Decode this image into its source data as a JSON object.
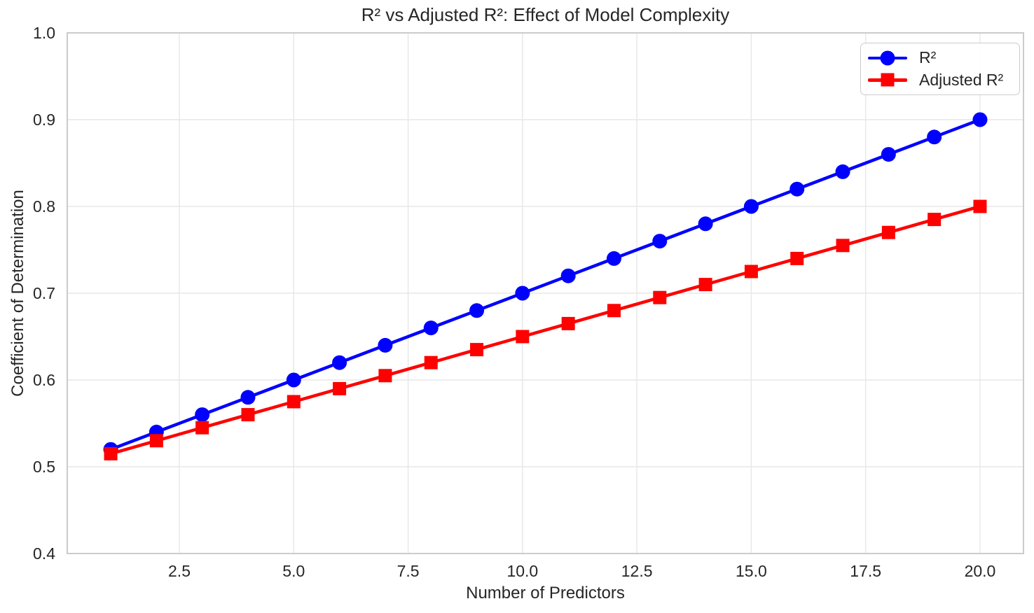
{
  "chart_data": {
    "type": "line",
    "title": "R² vs Adjusted R²: Effect of Model Complexity",
    "xlabel": "Number of Predictors",
    "ylabel": "Coefficient of Determination",
    "x": [
      1,
      2,
      3,
      4,
      5,
      6,
      7,
      8,
      9,
      10,
      11,
      12,
      13,
      14,
      15,
      16,
      17,
      18,
      19,
      20
    ],
    "series": [
      {
        "name": "R²",
        "color": "#0000ff",
        "marker": "circle",
        "values": [
          0.52,
          0.54,
          0.56,
          0.58,
          0.6,
          0.62,
          0.64,
          0.66,
          0.68,
          0.7,
          0.72,
          0.74,
          0.76,
          0.78,
          0.8,
          0.82,
          0.84,
          0.86,
          0.88,
          0.9
        ]
      },
      {
        "name": "Adjusted R²",
        "color": "#ff0000",
        "marker": "square",
        "values": [
          0.515,
          0.53,
          0.545,
          0.56,
          0.575,
          0.59,
          0.605,
          0.62,
          0.635,
          0.65,
          0.665,
          0.68,
          0.695,
          0.71,
          0.725,
          0.74,
          0.755,
          0.77,
          0.785,
          0.8
        ]
      }
    ],
    "xlim": [
      0.05,
      20.95
    ],
    "ylim": [
      0.4,
      1.0
    ],
    "xticks": [
      2.5,
      5.0,
      7.5,
      10.0,
      12.5,
      15.0,
      17.5,
      20.0
    ],
    "yticks": [
      0.4,
      0.5,
      0.6,
      0.7,
      0.8,
      0.9,
      1.0
    ],
    "tick_decimals": 1,
    "grid": true,
    "legend_position": "upper right"
  },
  "colors": {
    "grid": "#e7e7e7",
    "spine": "#cbcbcb",
    "text": "#262626",
    "background": "#ffffff"
  }
}
